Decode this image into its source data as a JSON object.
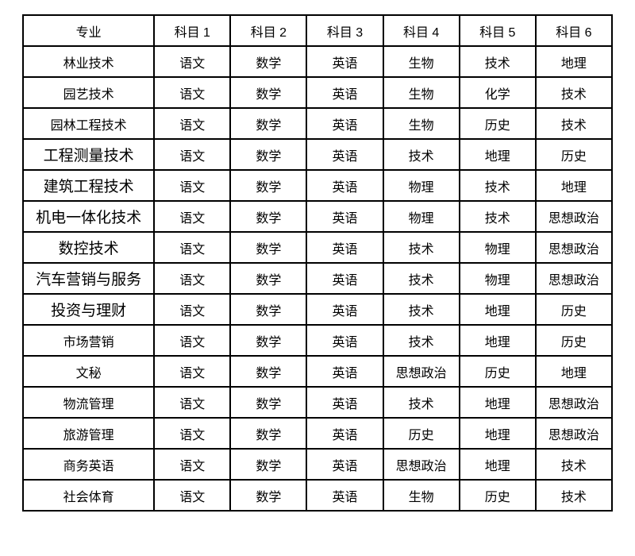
{
  "colors": {
    "background": "#ffffff",
    "border": "#000000",
    "text": "#000000"
  },
  "table": {
    "headers": [
      "专业",
      "科目 1",
      "科目 2",
      "科目 3",
      "科目 4",
      "科目 5",
      "科目 6"
    ],
    "rows": [
      {
        "major": "林业技术",
        "large": false,
        "subjects": [
          "语文",
          "数学",
          "英语",
          "生物",
          "技术",
          "地理"
        ]
      },
      {
        "major": "园艺技术",
        "large": false,
        "subjects": [
          "语文",
          "数学",
          "英语",
          "生物",
          "化学",
          "技术"
        ]
      },
      {
        "major": "园林工程技术",
        "large": false,
        "subjects": [
          "语文",
          "数学",
          "英语",
          "生物",
          "历史",
          "技术"
        ]
      },
      {
        "major": "工程测量技术",
        "large": true,
        "subjects": [
          "语文",
          "数学",
          "英语",
          "技术",
          "地理",
          "历史"
        ]
      },
      {
        "major": "建筑工程技术",
        "large": true,
        "subjects": [
          "语文",
          "数学",
          "英语",
          "物理",
          "技术",
          "地理"
        ]
      },
      {
        "major": "机电一体化技术",
        "large": true,
        "subjects": [
          "语文",
          "数学",
          "英语",
          "物理",
          "技术",
          "思想政治"
        ]
      },
      {
        "major": "数控技术",
        "large": true,
        "subjects": [
          "语文",
          "数学",
          "英语",
          "技术",
          "物理",
          "思想政治"
        ]
      },
      {
        "major": "汽车营销与服务",
        "large": true,
        "subjects": [
          "语文",
          "数学",
          "英语",
          "技术",
          "物理",
          "思想政治"
        ]
      },
      {
        "major": "投资与理财",
        "large": true,
        "subjects": [
          "语文",
          "数学",
          "英语",
          "技术",
          "地理",
          "历史"
        ]
      },
      {
        "major": "市场营销",
        "large": false,
        "subjects": [
          "语文",
          "数学",
          "英语",
          "技术",
          "地理",
          "历史"
        ]
      },
      {
        "major": "文秘",
        "large": false,
        "subjects": [
          "语文",
          "数学",
          "英语",
          "思想政治",
          "历史",
          "地理"
        ]
      },
      {
        "major": "物流管理",
        "large": false,
        "subjects": [
          "语文",
          "数学",
          "英语",
          "技术",
          "地理",
          "思想政治"
        ]
      },
      {
        "major": "旅游管理",
        "large": false,
        "subjects": [
          "语文",
          "数学",
          "英语",
          "历史",
          "地理",
          "思想政治"
        ]
      },
      {
        "major": "商务英语",
        "large": false,
        "subjects": [
          "语文",
          "数学",
          "英语",
          "思想政治",
          "地理",
          "技术"
        ]
      },
      {
        "major": "社会体育",
        "large": false,
        "subjects": [
          "语文",
          "数学",
          "英语",
          "生物",
          "历史",
          "技术"
        ]
      }
    ]
  }
}
